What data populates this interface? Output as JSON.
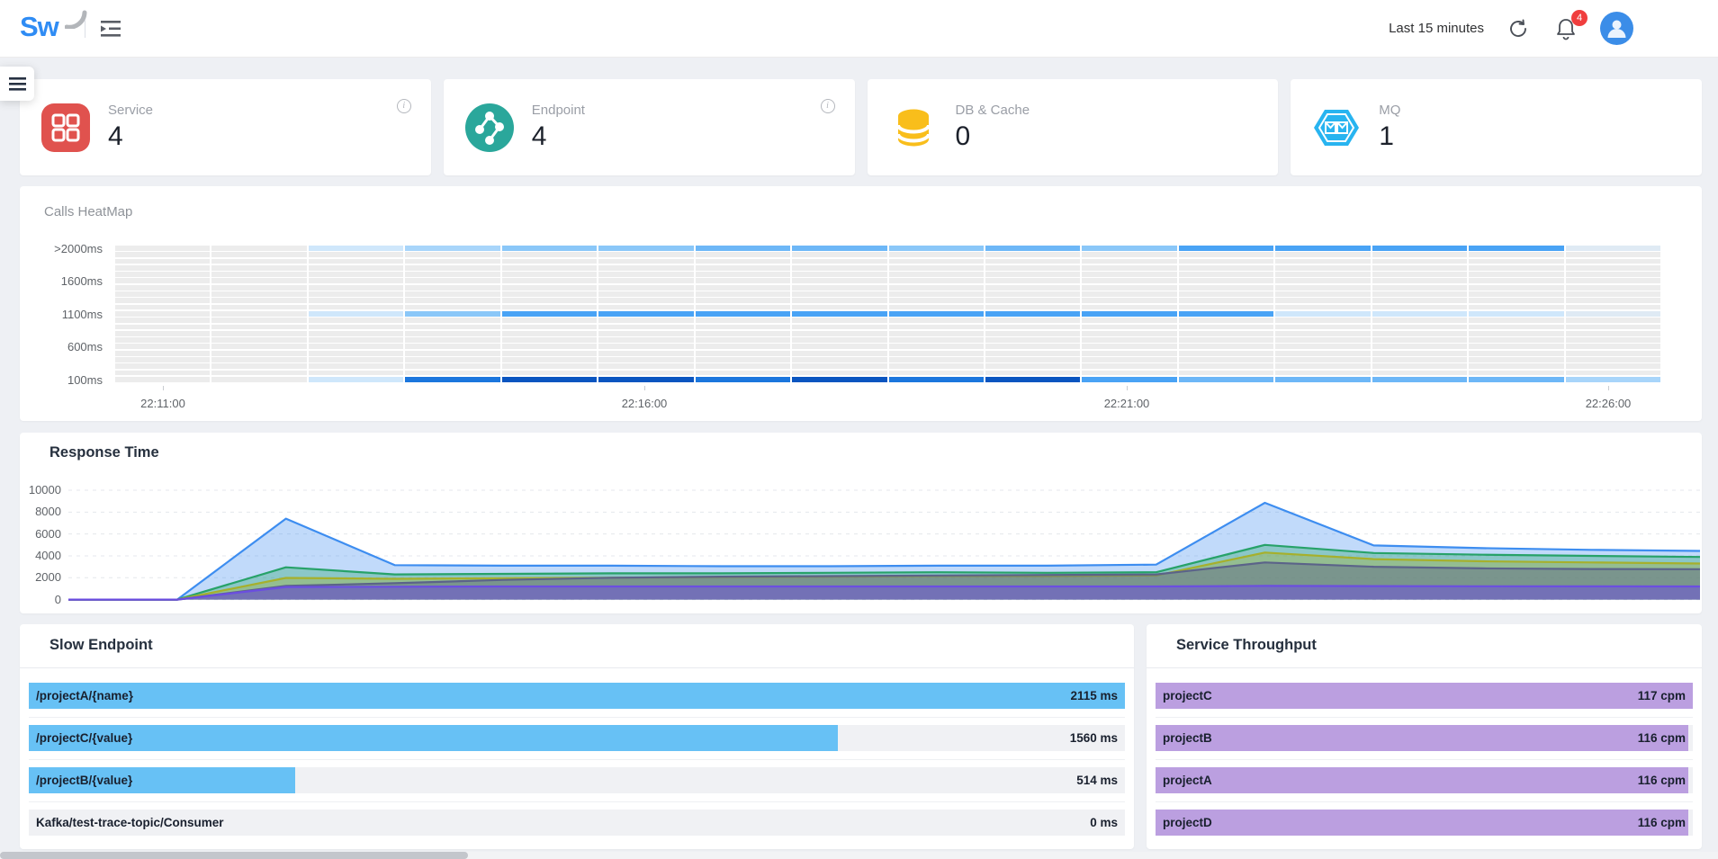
{
  "header": {
    "logo_text": "Sw",
    "time_range": "Last 15 minutes",
    "notification_count": "4"
  },
  "stat_cards": [
    {
      "label": "Service",
      "value": "4",
      "icon": "service-grid-icon",
      "color": "#e0524e",
      "has_info": true
    },
    {
      "label": "Endpoint",
      "value": "4",
      "icon": "endpoint-graph-icon",
      "color": "#2aa79b",
      "has_info": true
    },
    {
      "label": "DB & Cache",
      "value": "0",
      "icon": "database-icon",
      "color": "#f9be1b",
      "has_info": false
    },
    {
      "label": "MQ",
      "value": "1",
      "icon": "mq-hexagon-icon",
      "color": "#28b4f0",
      "has_info": false
    }
  ],
  "heatmap": {
    "type": "heatmap",
    "title": "Calls HeatMap",
    "y_axis_labels": [
      ">2000ms",
      "1600ms",
      "1100ms",
      "600ms",
      "100ms"
    ],
    "x_axis_labels": [
      "22:11:00",
      "22:16:00",
      "22:21:00",
      "22:26:00"
    ],
    "rows": 21,
    "cols": 16,
    "base_color": "#ececec",
    "levels": [
      "#dfeaf4",
      "#cfe7fb",
      "#a8d5fa",
      "#8ac7f8",
      "#6db7f7",
      "#49a3f5",
      "#1b76dd",
      "#0a55c0"
    ],
    "colored_rows": {
      "0": [
        -1,
        -1,
        1,
        2,
        3,
        3,
        4,
        4,
        3,
        4,
        3,
        5,
        5,
        5,
        5,
        0
      ],
      "10": [
        -1,
        -1,
        1,
        3,
        5,
        5,
        5,
        5,
        5,
        5,
        5,
        5,
        1,
        1,
        1,
        0
      ],
      "20": [
        -1,
        -1,
        1,
        6,
        7,
        7,
        6,
        7,
        6,
        7,
        5,
        4,
        4,
        4,
        4,
        2
      ]
    }
  },
  "response_time": {
    "type": "area",
    "title": "Response Time",
    "y_ticks": [
      "10000",
      "8000",
      "6000",
      "4000",
      "2000",
      "0"
    ],
    "ylim": [
      0,
      10000
    ],
    "points": 16,
    "series": [
      {
        "name": "blue",
        "color": "#3d8df0",
        "fill_opacity": 0.32,
        "values": [
          0,
          0,
          7400,
          3150,
          3100,
          3100,
          3050,
          3050,
          3100,
          3100,
          3200,
          8850,
          4950,
          4700,
          4550,
          4450
        ]
      },
      {
        "name": "green",
        "color": "#27a269",
        "fill_opacity": 0.35,
        "values": [
          0,
          0,
          2950,
          2300,
          2350,
          2400,
          2400,
          2450,
          2500,
          2450,
          2500,
          5000,
          4260,
          4100,
          4000,
          3900
        ]
      },
      {
        "name": "olive",
        "color": "#a6b02c",
        "fill_opacity": 0.35,
        "values": [
          0,
          0,
          1980,
          1900,
          1950,
          2000,
          2050,
          2100,
          2150,
          2150,
          2200,
          4300,
          3700,
          3500,
          3400,
          3300
        ]
      },
      {
        "name": "slate",
        "color": "#5b6389",
        "fill_opacity": 0.45,
        "values": [
          0,
          0,
          1250,
          1500,
          1800,
          2000,
          2100,
          2150,
          2200,
          2250,
          2300,
          3400,
          3000,
          2850,
          2800,
          2780
        ]
      },
      {
        "name": "purple",
        "color": "#6b4ee0",
        "fill_opacity": 0.5,
        "values": [
          0,
          0,
          1150,
          1180,
          1200,
          1200,
          1200,
          1200,
          1200,
          1200,
          1200,
          1250,
          1230,
          1220,
          1210,
          1200
        ]
      }
    ]
  },
  "slow_endpoint": {
    "type": "bar",
    "title": "Slow Endpoint",
    "bar_color": "#67c1f5",
    "items": [
      {
        "label": "/projectA/{name}",
        "value": "2115 ms",
        "pct": 100
      },
      {
        "label": "/projectC/{value}",
        "value": "1560 ms",
        "pct": 73.8
      },
      {
        "label": "/projectB/{value}",
        "value": "514 ms",
        "pct": 24.3
      },
      {
        "label": "Kafka/test-trace-topic/Consumer",
        "value": "0 ms",
        "pct": 0
      }
    ]
  },
  "service_throughput": {
    "type": "bar",
    "title": "Service Throughput",
    "bar_color": "#bb9fe0",
    "items": [
      {
        "label": "projectC",
        "value": "117 cpm",
        "pct": 100
      },
      {
        "label": "projectB",
        "value": "116 cpm",
        "pct": 99.1
      },
      {
        "label": "projectA",
        "value": "116 cpm",
        "pct": 99.1
      },
      {
        "label": "projectD",
        "value": "116 cpm",
        "pct": 99.1
      }
    ]
  }
}
